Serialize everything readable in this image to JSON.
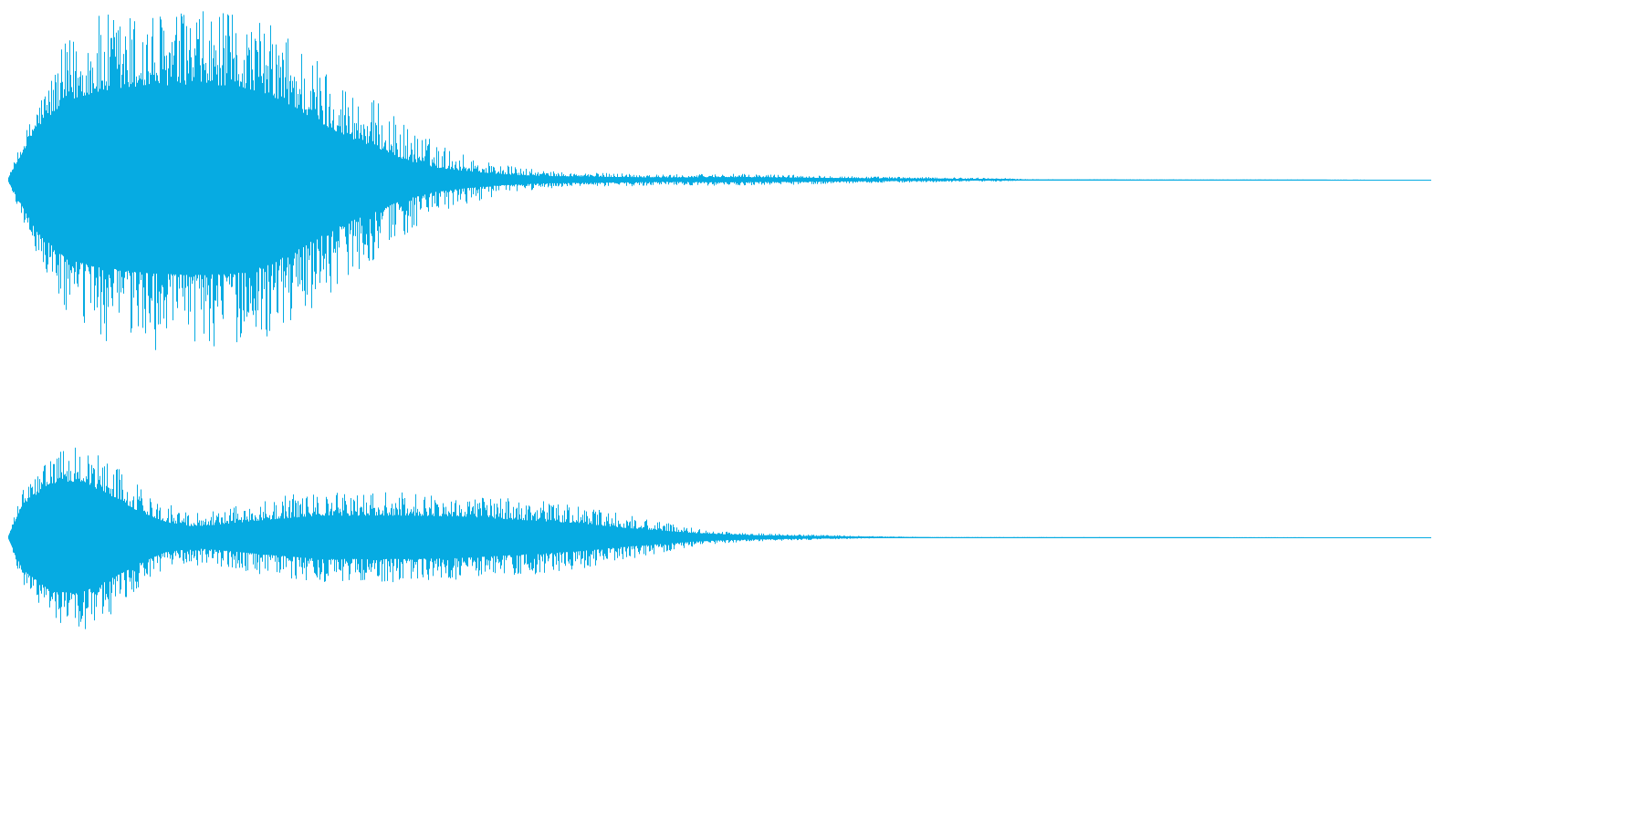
{
  "chart_data": {
    "type": "area",
    "title": "",
    "xlabel": "",
    "ylabel": "",
    "grid": false,
    "color": "#06ABE2",
    "series": [
      {
        "channel": 1,
        "x": [
          0.0,
          0.02,
          0.04,
          0.06,
          0.08,
          0.1,
          0.13,
          0.16,
          0.18,
          0.2,
          0.22,
          0.24,
          0.26,
          0.27,
          0.28,
          0.3,
          0.32,
          0.34,
          0.36,
          0.38,
          0.4,
          0.43,
          0.46,
          0.5,
          0.55,
          0.6,
          0.65,
          0.7,
          0.71,
          0.72,
          1.0
        ],
        "peak": [
          0.02,
          0.45,
          0.8,
          0.95,
          0.98,
          0.99,
          0.98,
          0.96,
          0.92,
          0.85,
          0.7,
          0.55,
          0.45,
          0.38,
          0.32,
          0.22,
          0.15,
          0.1,
          0.07,
          0.05,
          0.04,
          0.04,
          0.03,
          0.035,
          0.03,
          0.02,
          0.015,
          0.01,
          0.006,
          0.003,
          0.0
        ],
        "body": [
          0.01,
          0.3,
          0.45,
          0.5,
          0.52,
          0.54,
          0.55,
          0.54,
          0.5,
          0.42,
          0.32,
          0.24,
          0.18,
          0.14,
          0.11,
          0.07,
          0.05,
          0.035,
          0.025,
          0.02,
          0.018,
          0.015,
          0.012,
          0.014,
          0.012,
          0.008,
          0.006,
          0.004,
          0.002,
          0.001,
          0.0
        ]
      },
      {
        "channel": 2,
        "x": [
          0.0,
          0.01,
          0.03,
          0.05,
          0.07,
          0.09,
          0.11,
          0.13,
          0.15,
          0.18,
          0.2,
          0.22,
          0.25,
          0.28,
          0.32,
          0.36,
          0.4,
          0.43,
          0.46,
          0.48,
          0.5,
          0.52,
          0.55,
          0.58,
          0.6,
          0.62,
          0.64,
          0.65,
          1.0
        ],
        "peak": [
          0.02,
          0.45,
          0.75,
          0.9,
          0.75,
          0.5,
          0.32,
          0.26,
          0.28,
          0.35,
          0.4,
          0.42,
          0.42,
          0.42,
          0.4,
          0.36,
          0.3,
          0.22,
          0.14,
          0.09,
          0.06,
          0.04,
          0.03,
          0.02,
          0.012,
          0.008,
          0.004,
          0.002,
          0.0
        ],
        "body": [
          0.01,
          0.3,
          0.5,
          0.52,
          0.4,
          0.25,
          0.14,
          0.1,
          0.12,
          0.16,
          0.18,
          0.2,
          0.2,
          0.2,
          0.19,
          0.16,
          0.13,
          0.09,
          0.06,
          0.04,
          0.028,
          0.02,
          0.014,
          0.01,
          0.006,
          0.004,
          0.002,
          0.001,
          0.0
        ]
      }
    ]
  }
}
